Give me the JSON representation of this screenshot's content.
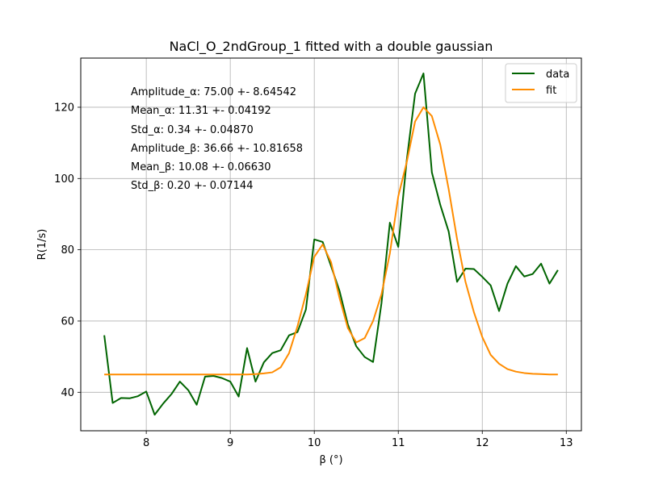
{
  "chart_data": {
    "type": "line",
    "title": "NaCl_O_2ndGroup_1 fitted with a double gaussian",
    "xlabel": "β (°)",
    "ylabel": "R(1/s)",
    "xlim": [
      7.22,
      13.18
    ],
    "ylim": [
      29.2,
      133.8
    ],
    "xticks": [
      8,
      9,
      10,
      11,
      12,
      13
    ],
    "yticks": [
      40,
      60,
      80,
      100,
      120
    ],
    "grid": true,
    "legend_position": "top-right",
    "annotations": [
      "Amplitude_α: 75.00 +- 8.64542",
      "Mean_α: 11.31 +- 0.04192",
      "Std_α: 0.34 +- 0.04870",
      "Amplitude_β: 36.66 +- 10.81658",
      "Mean_β: 10.08 +- 0.06630",
      "Std_β: 0.20 +- 0.07144"
    ],
    "series": [
      {
        "name": "data",
        "color": "#006400",
        "x": [
          7.5,
          7.6,
          7.7,
          7.8,
          7.9,
          8.0,
          8.1,
          8.2,
          8.3,
          8.4,
          8.5,
          8.6,
          8.7,
          8.8,
          8.9,
          9.0,
          9.1,
          9.2,
          9.3,
          9.4,
          9.5,
          9.6,
          9.7,
          9.8,
          9.9,
          10.0,
          10.1,
          10.2,
          10.3,
          10.4,
          10.5,
          10.6,
          10.7,
          10.8,
          10.9,
          11.0,
          11.1,
          11.2,
          11.3,
          11.4,
          11.5,
          11.6,
          11.7,
          11.8,
          11.9,
          12.0,
          12.1,
          12.2,
          12.3,
          12.4,
          12.5,
          12.6,
          12.7,
          12.8,
          12.9
        ],
        "values": [
          56.0,
          37.0,
          38.4,
          38.3,
          38.9,
          40.2,
          33.7,
          36.8,
          39.5,
          43.0,
          40.6,
          36.5,
          44.4,
          44.6,
          44.0,
          43.0,
          38.8,
          52.4,
          43.0,
          48.4,
          51.0,
          51.8,
          56.0,
          56.9,
          63.2,
          82.9,
          82.2,
          75.4,
          68.5,
          59.0,
          52.9,
          49.9,
          48.5,
          65.0,
          87.6,
          80.8,
          105.0,
          123.8,
          129.5,
          101.7,
          92.6,
          85.1,
          71.0,
          74.7,
          74.6,
          72.4,
          70.0,
          62.8,
          70.5,
          75.4,
          72.5,
          73.2,
          76.1,
          70.5,
          74.3
        ]
      },
      {
        "name": "fit",
        "color": "#ff8c00",
        "x": [
          7.5,
          7.6,
          7.7,
          7.8,
          7.9,
          8.0,
          8.1,
          8.2,
          8.3,
          8.4,
          8.5,
          8.6,
          8.7,
          8.8,
          8.9,
          9.0,
          9.1,
          9.2,
          9.3,
          9.4,
          9.5,
          9.6,
          9.7,
          9.8,
          9.9,
          10.0,
          10.1,
          10.2,
          10.3,
          10.4,
          10.5,
          10.6,
          10.7,
          10.8,
          10.9,
          11.0,
          11.1,
          11.2,
          11.3,
          11.4,
          11.5,
          11.6,
          11.7,
          11.8,
          11.9,
          12.0,
          12.1,
          12.2,
          12.3,
          12.4,
          12.5,
          12.6,
          12.7,
          12.8,
          12.9
        ],
        "values": [
          45.0,
          45.0,
          45.0,
          45.0,
          45.0,
          45.0,
          45.0,
          45.0,
          45.0,
          45.0,
          45.0,
          45.0,
          45.0,
          45.0,
          45.0,
          45.0,
          45.0,
          45.0,
          45.1,
          45.3,
          45.6,
          47.0,
          51.0,
          58.5,
          67.5,
          78.0,
          81.5,
          76.5,
          66.5,
          58.0,
          54.0,
          55.2,
          60.0,
          67.5,
          79.0,
          95.0,
          104.5,
          116.0,
          120.0,
          117.5,
          109.5,
          97.0,
          83.0,
          71.0,
          62.5,
          55.5,
          50.5,
          48.0,
          46.5,
          45.8,
          45.4,
          45.2,
          45.1,
          45.0,
          45.0
        ]
      }
    ]
  }
}
